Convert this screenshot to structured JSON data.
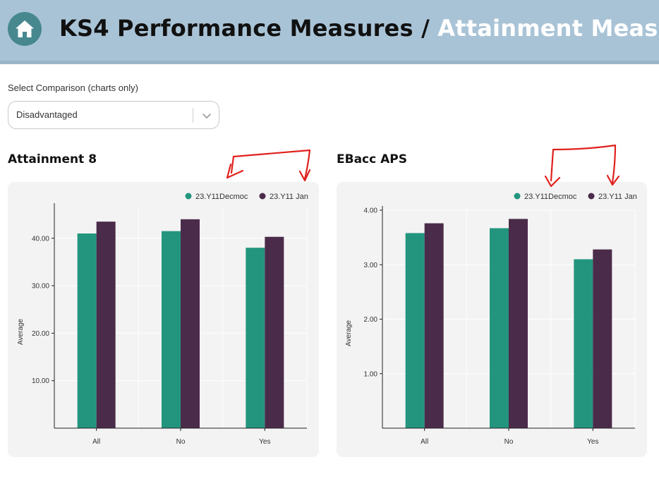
{
  "header": {
    "title_main": "KS4 Performance Measures",
    "separator": "/",
    "title_sub": "Attainment Measures",
    "home_icon": "home-icon"
  },
  "comparison": {
    "label": "Select Comparison (charts only)",
    "selected": "Disadvantaged",
    "chevron_icon": "chevron-down-icon"
  },
  "colors": {
    "series1": "#23957e",
    "series2": "#4b2b4a",
    "annotation": "#e0211e"
  },
  "charts": [
    {
      "title": "Attainment 8",
      "chart_data": {
        "type": "bar",
        "categories": [
          "All",
          "No",
          "Yes"
        ],
        "series": [
          {
            "name": "23.Y11Decmoc",
            "values": [
              41.0,
              41.5,
              38.0
            ]
          },
          {
            "name": "23.Y11 Jan",
            "values": [
              43.5,
              44.0,
              40.3
            ]
          }
        ],
        "xlabel": "",
        "ylabel": "Average",
        "yticks": [
          "10.00",
          "20.00",
          "30.00",
          "40.00"
        ],
        "ylim": [
          0,
          46.5
        ],
        "legend": "top-right",
        "grid": true
      }
    },
    {
      "title": "EBacc APS",
      "chart_data": {
        "type": "bar",
        "categories": [
          "All",
          "No",
          "Yes"
        ],
        "series": [
          {
            "name": "23.Y11Decmoc",
            "values": [
              3.58,
              3.67,
              3.1
            ]
          },
          {
            "name": "23.Y11 Jan",
            "values": [
              3.76,
              3.84,
              3.28
            ]
          }
        ],
        "xlabel": "",
        "ylabel": "Average",
        "yticks": [
          "1.00",
          "2.00",
          "3.00",
          "4.00"
        ],
        "ylim": [
          0,
          4.0
        ],
        "legend": "top-right",
        "grid": true
      }
    }
  ]
}
